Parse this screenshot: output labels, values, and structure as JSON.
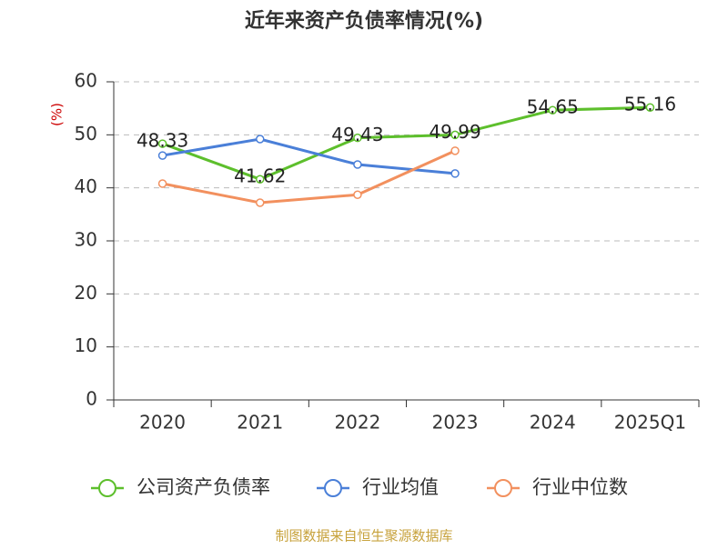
{
  "chart_data": {
    "type": "line",
    "title": "近年来资产负债率情况(%)",
    "y_label": "(%)",
    "categories": [
      "2020",
      "2021",
      "2022",
      "2023",
      "2024",
      "2025Q1"
    ],
    "series": [
      {
        "name": "公司资产负债率",
        "color": "#5dbf2c",
        "values": [
          48.33,
          41.62,
          49.43,
          49.99,
          54.65,
          55.16
        ],
        "show_labels": true
      },
      {
        "name": "行业均值",
        "color": "#4a7fd8",
        "values": [
          46.1,
          49.2,
          44.4,
          42.7,
          null,
          null
        ]
      },
      {
        "name": "行业中位数",
        "color": "#f2905e",
        "values": [
          40.8,
          37.2,
          38.7,
          47.0,
          null,
          null
        ]
      }
    ],
    "ylim": [
      0,
      60
    ],
    "yticks": [
      0,
      10,
      20,
      30,
      40,
      50,
      60
    ],
    "grid": true,
    "legend": "bottom",
    "source": "制图数据来自恒生聚源数据库"
  }
}
